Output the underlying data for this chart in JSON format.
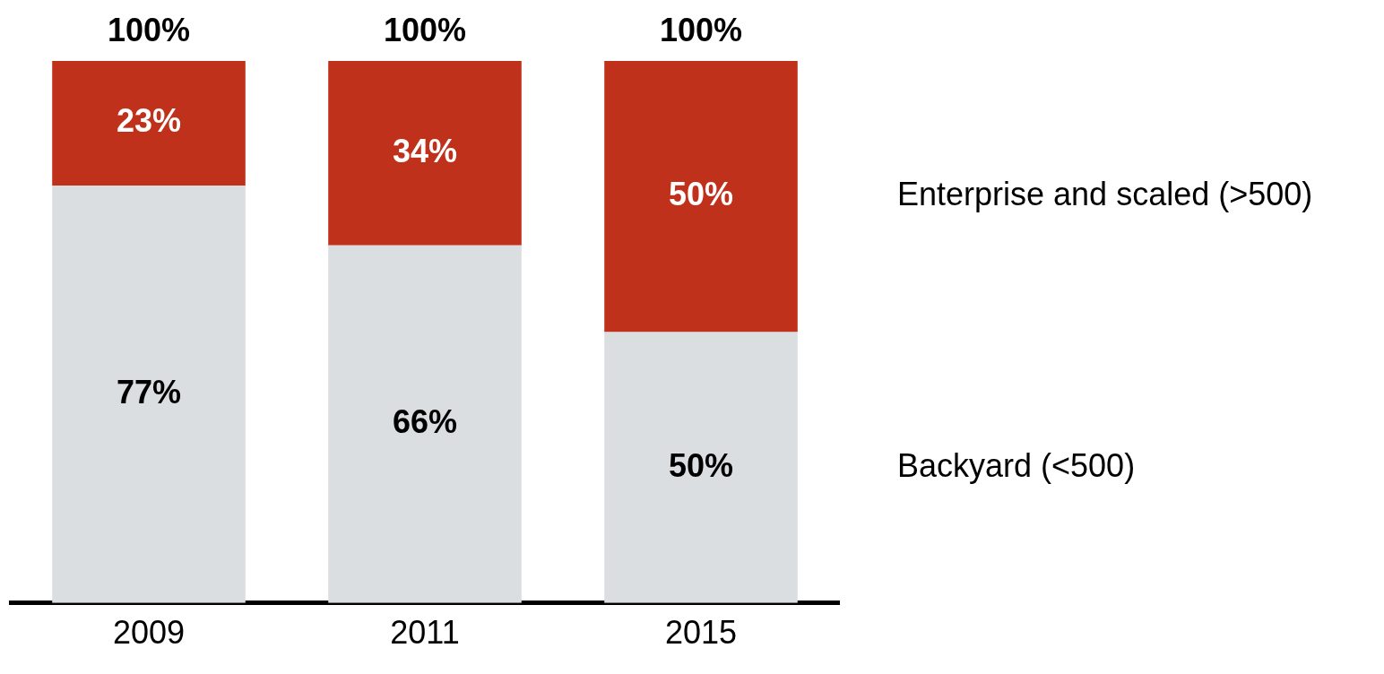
{
  "chart_data": {
    "type": "bar",
    "stacked": true,
    "categories": [
      "2009",
      "2011",
      "2015"
    ],
    "series": [
      {
        "name": "Backyard (<500)",
        "color": "#dadee1",
        "values": [
          77,
          66,
          50
        ],
        "value_labels": [
          "77%",
          "66%",
          "50%"
        ]
      },
      {
        "name": "Enterprise and scaled (>500)",
        "color": "#c0311c",
        "values": [
          23,
          34,
          50
        ],
        "value_labels": [
          "23%",
          "34%",
          "50%"
        ]
      }
    ],
    "totals": [
      "100%",
      "100%",
      "100%"
    ],
    "ylim": [
      0,
      100
    ],
    "tick_labels": "x",
    "grid": false,
    "legend": false
  }
}
